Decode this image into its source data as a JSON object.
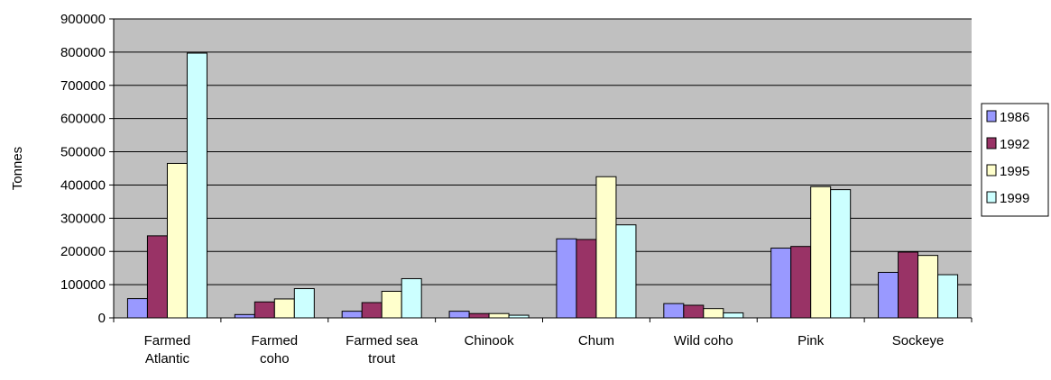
{
  "chart_data": {
    "type": "bar",
    "title": "",
    "xlabel": "",
    "ylabel": "Tonnes",
    "ylim": [
      0,
      900000
    ],
    "yticks": [
      "0",
      "100000",
      "200000",
      "300000",
      "400000",
      "500000",
      "600000",
      "700000",
      "800000",
      "900000"
    ],
    "categories": [
      [
        "Farmed",
        "Atlantic"
      ],
      [
        "Farmed",
        "coho"
      ],
      [
        "Farmed sea",
        "trout"
      ],
      [
        "Chinook"
      ],
      [
        "Chum"
      ],
      [
        "Wild coho"
      ],
      [
        "Pink"
      ],
      [
        "Sockeye"
      ]
    ],
    "series": [
      {
        "name": "1986",
        "color": "#9999ff",
        "values": [
          58000,
          10000,
          20000,
          20000,
          238000,
          43000,
          210000,
          137000
        ]
      },
      {
        "name": "1992",
        "color": "#993366",
        "values": [
          247000,
          48000,
          46000,
          13000,
          236000,
          38000,
          215000,
          198000
        ]
      },
      {
        "name": "1995",
        "color": "#ffffcc",
        "values": [
          465000,
          57000,
          80000,
          13000,
          425000,
          28000,
          395000,
          188000
        ]
      },
      {
        "name": "1999",
        "color": "#ccffff",
        "values": [
          797000,
          88000,
          118000,
          8000,
          280000,
          15000,
          386000,
          130000
        ]
      }
    ],
    "grid": true,
    "plot_background": "#c0c0c0",
    "legend_position": "right"
  }
}
